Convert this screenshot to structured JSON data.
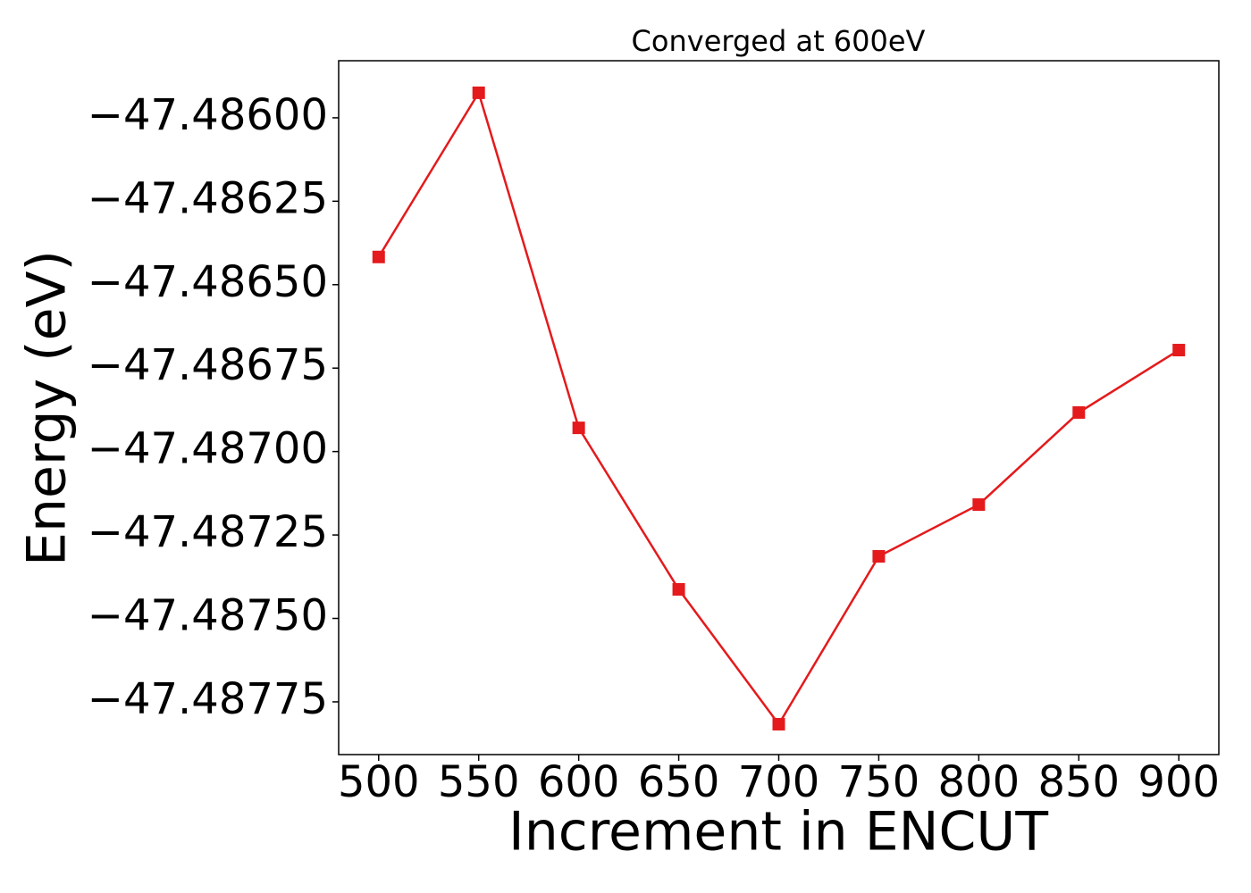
{
  "chart_data": {
    "type": "line",
    "title": "Converged at 600eV",
    "xlabel": "Increment in ENCUT",
    "ylabel": "Energy (eV)",
    "x": [
      500,
      550,
      600,
      650,
      700,
      750,
      800,
      850,
      900
    ],
    "series": [
      {
        "color": "#e41a1c",
        "marker": "square",
        "values": [
          -47.486417,
          -47.485925,
          -47.486929,
          -47.487413,
          -47.487817,
          -47.487314,
          -47.487159,
          -47.486883,
          -47.486696
        ]
      }
    ],
    "xlim": [
      480,
      920
    ],
    "xticks": [
      500,
      550,
      600,
      650,
      700,
      750,
      800,
      850,
      900
    ],
    "ylim": [
      -47.487908,
      -47.485829
    ],
    "yticks": [
      {
        "value": -47.486,
        "label": "−47.48600"
      },
      {
        "value": -47.48625,
        "label": "−47.48625"
      },
      {
        "value": -47.4865,
        "label": "−47.48650"
      },
      {
        "value": -47.48675,
        "label": "−47.48675"
      },
      {
        "value": -47.487,
        "label": "−47.48700"
      },
      {
        "value": -47.48725,
        "label": "−47.48725"
      },
      {
        "value": -47.4875,
        "label": "−47.48750"
      },
      {
        "value": -47.48775,
        "label": "−47.48775"
      }
    ],
    "grid": false
  }
}
